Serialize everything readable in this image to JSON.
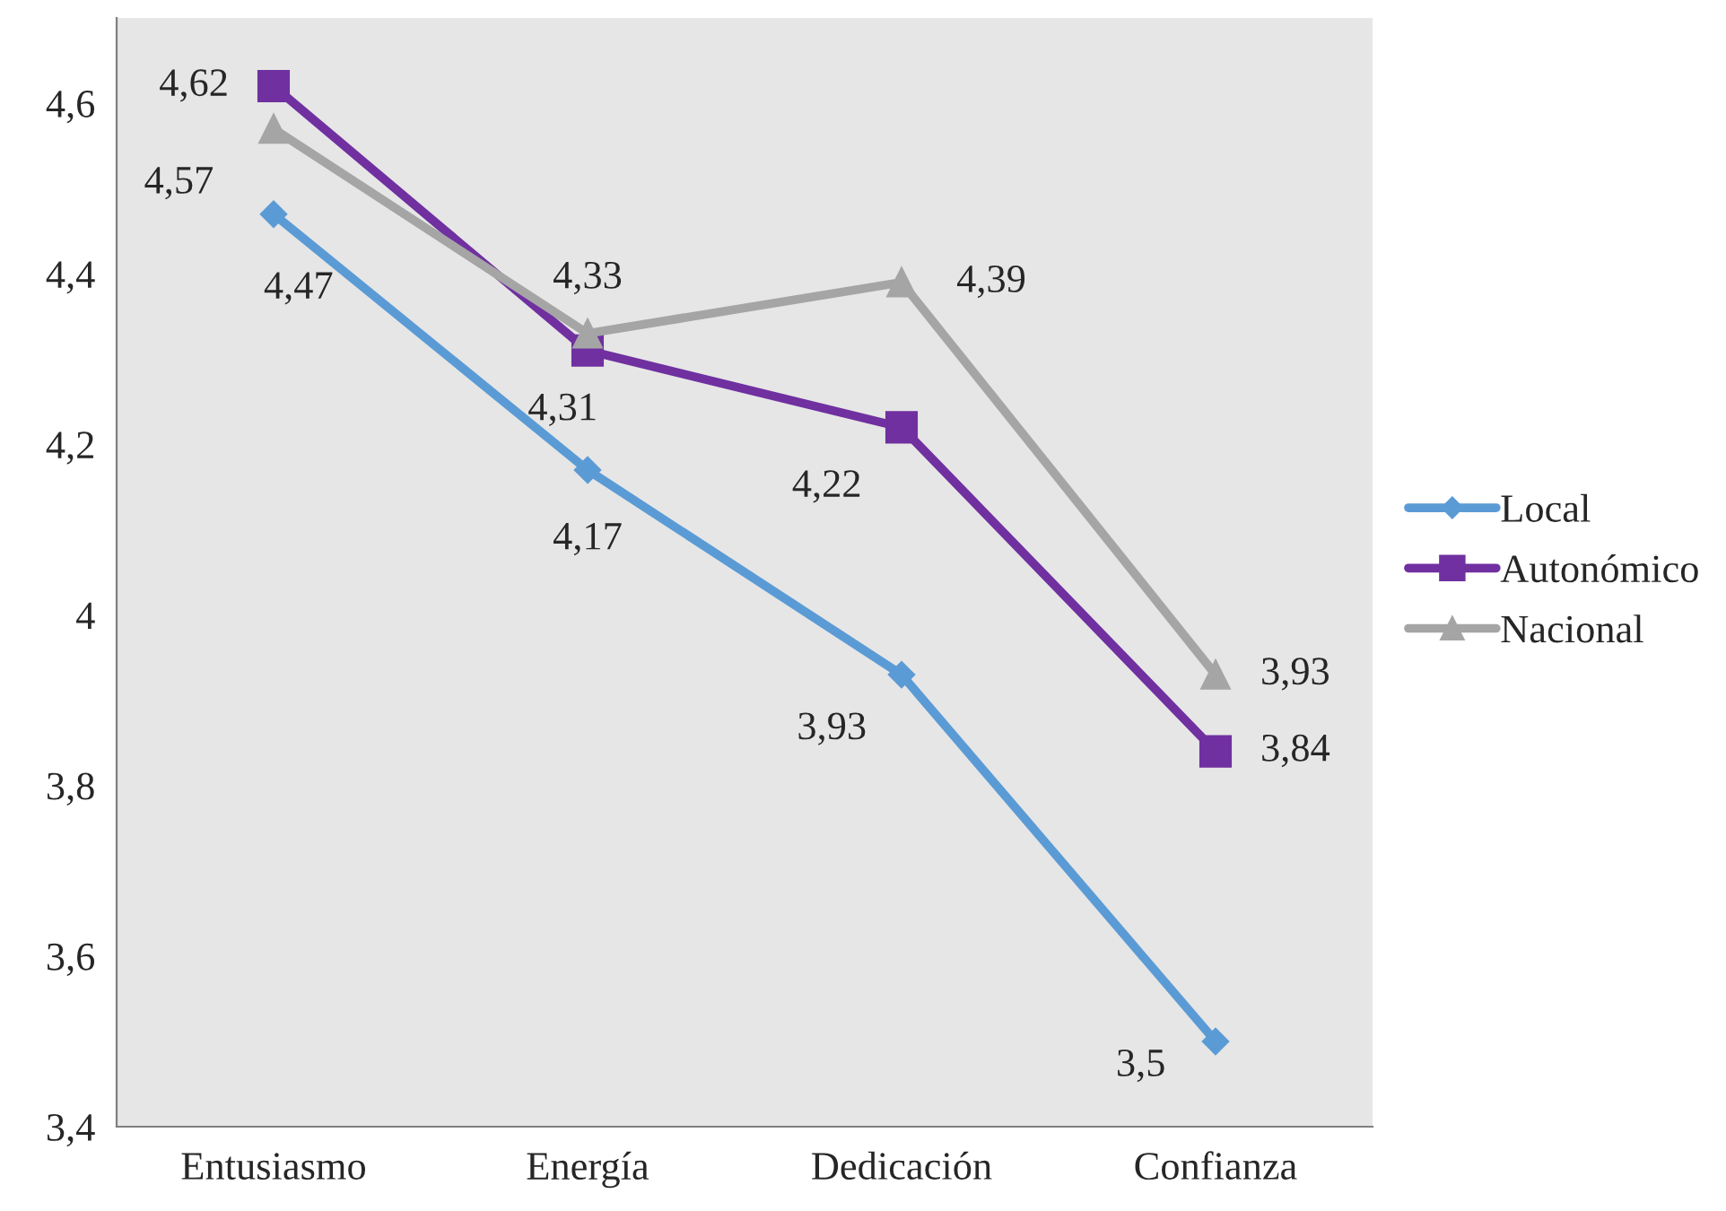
{
  "chart_data": {
    "type": "line",
    "categories": [
      "Entusiasmo",
      "Energía",
      "Dedicación",
      "Confianza"
    ],
    "series": [
      {
        "name": "Local",
        "color": "#5b9bd5",
        "marker": "diamond",
        "values": [
          4.47,
          4.17,
          3.93,
          3.5
        ],
        "value_labels": [
          "4,47",
          "4,17",
          "3,93",
          "3,5"
        ]
      },
      {
        "name": "Autonómico",
        "color": "#7030a0",
        "marker": "square",
        "values": [
          4.62,
          4.31,
          4.22,
          3.84
        ],
        "value_labels": [
          "4,62",
          "4,31",
          "4,22",
          "3,84"
        ]
      },
      {
        "name": "Nacional",
        "color": "#a5a5a5",
        "marker": "triangle",
        "values": [
          4.57,
          4.33,
          4.39,
          3.93
        ],
        "value_labels": [
          "4,57",
          "4,33",
          "4,39",
          "3,93"
        ]
      }
    ],
    "ylim": [
      3.4,
      4.7
    ],
    "yticks": [
      {
        "value": 3.4,
        "label": "3,4"
      },
      {
        "value": 3.6,
        "label": "3,6"
      },
      {
        "value": 3.8,
        "label": "3,8"
      },
      {
        "value": 4,
        "label": "4"
      },
      {
        "value": 4.2,
        "label": "4,2"
      },
      {
        "value": 4.4,
        "label": "4,4"
      },
      {
        "value": 4.6,
        "label": "4,6"
      }
    ],
    "grid": false,
    "legend": "right",
    "line_style": "solid"
  }
}
